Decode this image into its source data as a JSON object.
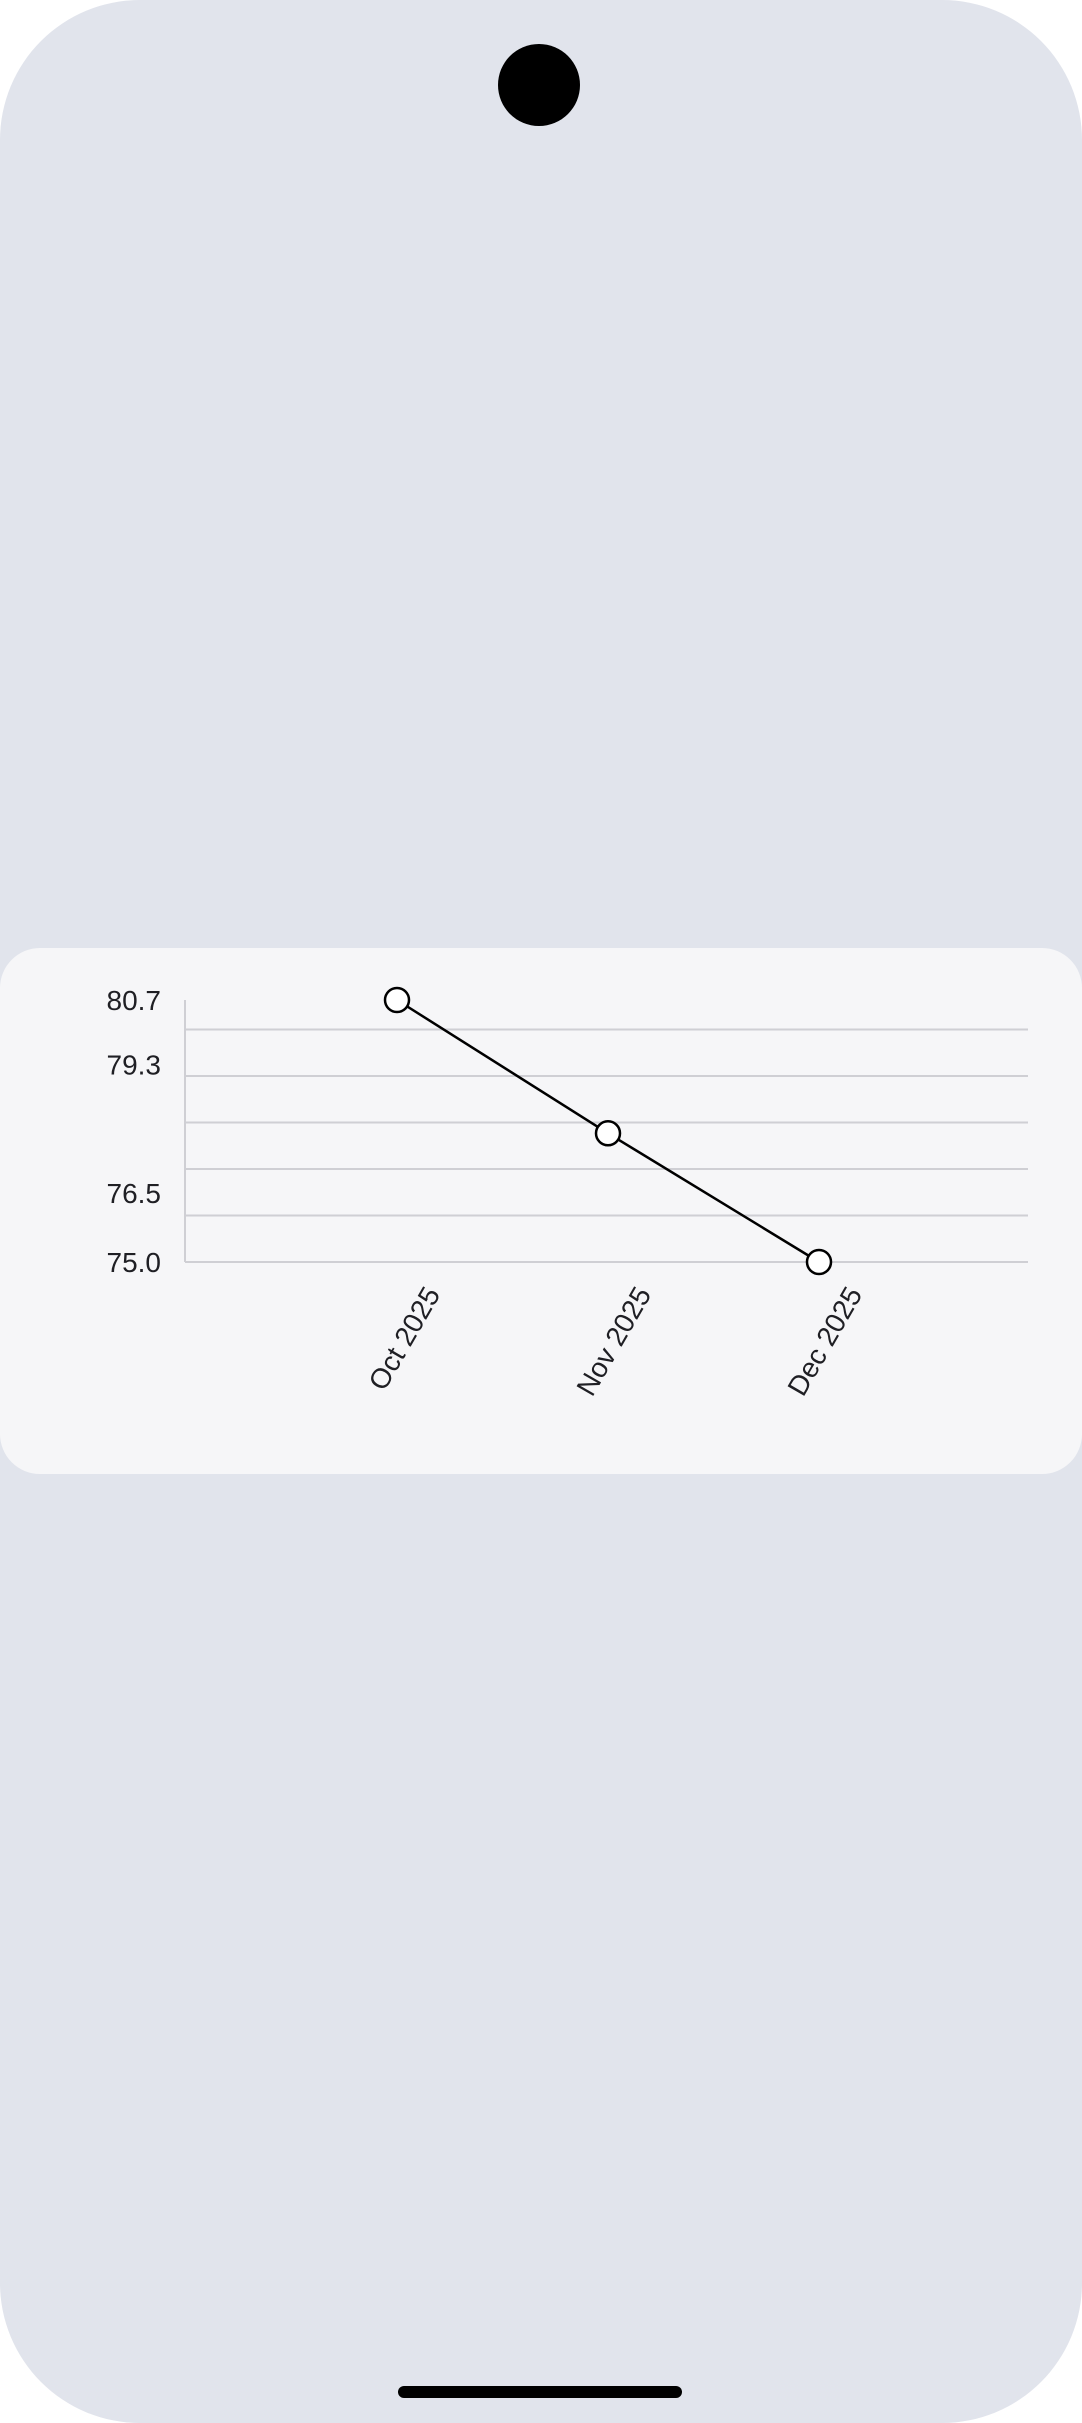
{
  "chart_data": {
    "type": "line",
    "x": [
      "Oct 2025",
      "Nov 2025",
      "Dec 2025"
    ],
    "series": [
      {
        "values": [
          80.7,
          77.8,
          75.0
        ]
      }
    ],
    "y_tick_labels": [
      "80.7",
      "79.3",
      "76.5",
      "75.0"
    ],
    "ylim": [
      75.0,
      80.7
    ],
    "grid": true,
    "title": "",
    "xlabel": "",
    "ylabel": "",
    "colors": {
      "line": "#000000",
      "grid": "#cfcfd4",
      "marker_fill": "#ffffff",
      "card": "#f6f6f8",
      "frame": "#e1e4ec"
    }
  }
}
